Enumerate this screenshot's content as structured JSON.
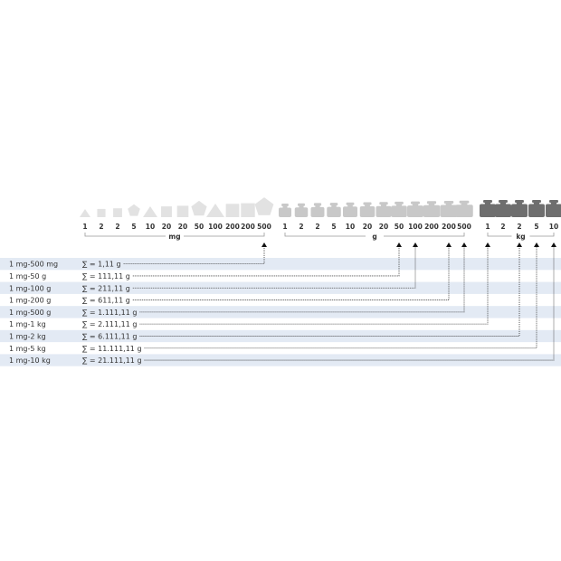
{
  "groups": [
    {
      "unit": "mg",
      "weights": [
        "1",
        "2",
        "2",
        "5",
        "10",
        "20",
        "20",
        "50",
        "100",
        "200",
        "200",
        "500"
      ],
      "shapes": [
        "triangle",
        "square",
        "square",
        "pentagon",
        "triangle",
        "square",
        "square",
        "pentagon",
        "triangle",
        "square",
        "square",
        "pentagon"
      ],
      "color": "#e2e2e2"
    },
    {
      "unit": "g",
      "weights": [
        "1",
        "2",
        "2",
        "5",
        "10",
        "20",
        "20",
        "50",
        "100",
        "200",
        "200",
        "500"
      ],
      "shapes": [
        "cylinder-weight",
        "cylinder-weight",
        "cylinder-weight",
        "cylinder-weight",
        "cylinder-weight",
        "cylinder-weight",
        "cylinder-weight",
        "cylinder-weight",
        "cylinder-weight",
        "cylinder-weight",
        "cylinder-weight",
        "cylinder-weight"
      ],
      "color": "#c8c8c8"
    },
    {
      "unit": "kg",
      "weights": [
        "1",
        "2",
        "2",
        "5",
        "10"
      ],
      "shapes": [
        "cylinder-weight",
        "cylinder-weight",
        "cylinder-weight",
        "cylinder-weight",
        "cylinder-weight"
      ],
      "color": "#6e6e6e"
    }
  ],
  "rows": [
    {
      "label": "1 mg-500 mg",
      "sum": "∑ = 1,11 g",
      "target": "mg:11"
    },
    {
      "label": "1 mg-50 g",
      "sum": "∑ = 111,11 g",
      "target": "g:7"
    },
    {
      "label": "1 mg-100 g",
      "sum": "∑ = 211,11 g",
      "target": "g:8"
    },
    {
      "label": "1 mg-200 g",
      "sum": "∑ = 611,11 g",
      "target": "g:10"
    },
    {
      "label": "1 mg-500 g",
      "sum": "∑ = 1.111,11 g",
      "target": "g:11"
    },
    {
      "label": "1 mg-1 kg",
      "sum": "∑ = 2.111,11 g",
      "target": "kg:0"
    },
    {
      "label": "1 mg-2 kg",
      "sum": "∑ = 6.111,11 g",
      "target": "kg:2"
    },
    {
      "label": "1 mg-5 kg",
      "sum": "∑ = 11.111,11 g",
      "target": "kg:3"
    },
    {
      "label": "1 mg-10 kg",
      "sum": "∑ = 21.111,11 g",
      "target": "kg:4"
    }
  ],
  "colors": {
    "row_shade": "#e3eaf4",
    "line": "#333333",
    "bracket": "#999999"
  }
}
